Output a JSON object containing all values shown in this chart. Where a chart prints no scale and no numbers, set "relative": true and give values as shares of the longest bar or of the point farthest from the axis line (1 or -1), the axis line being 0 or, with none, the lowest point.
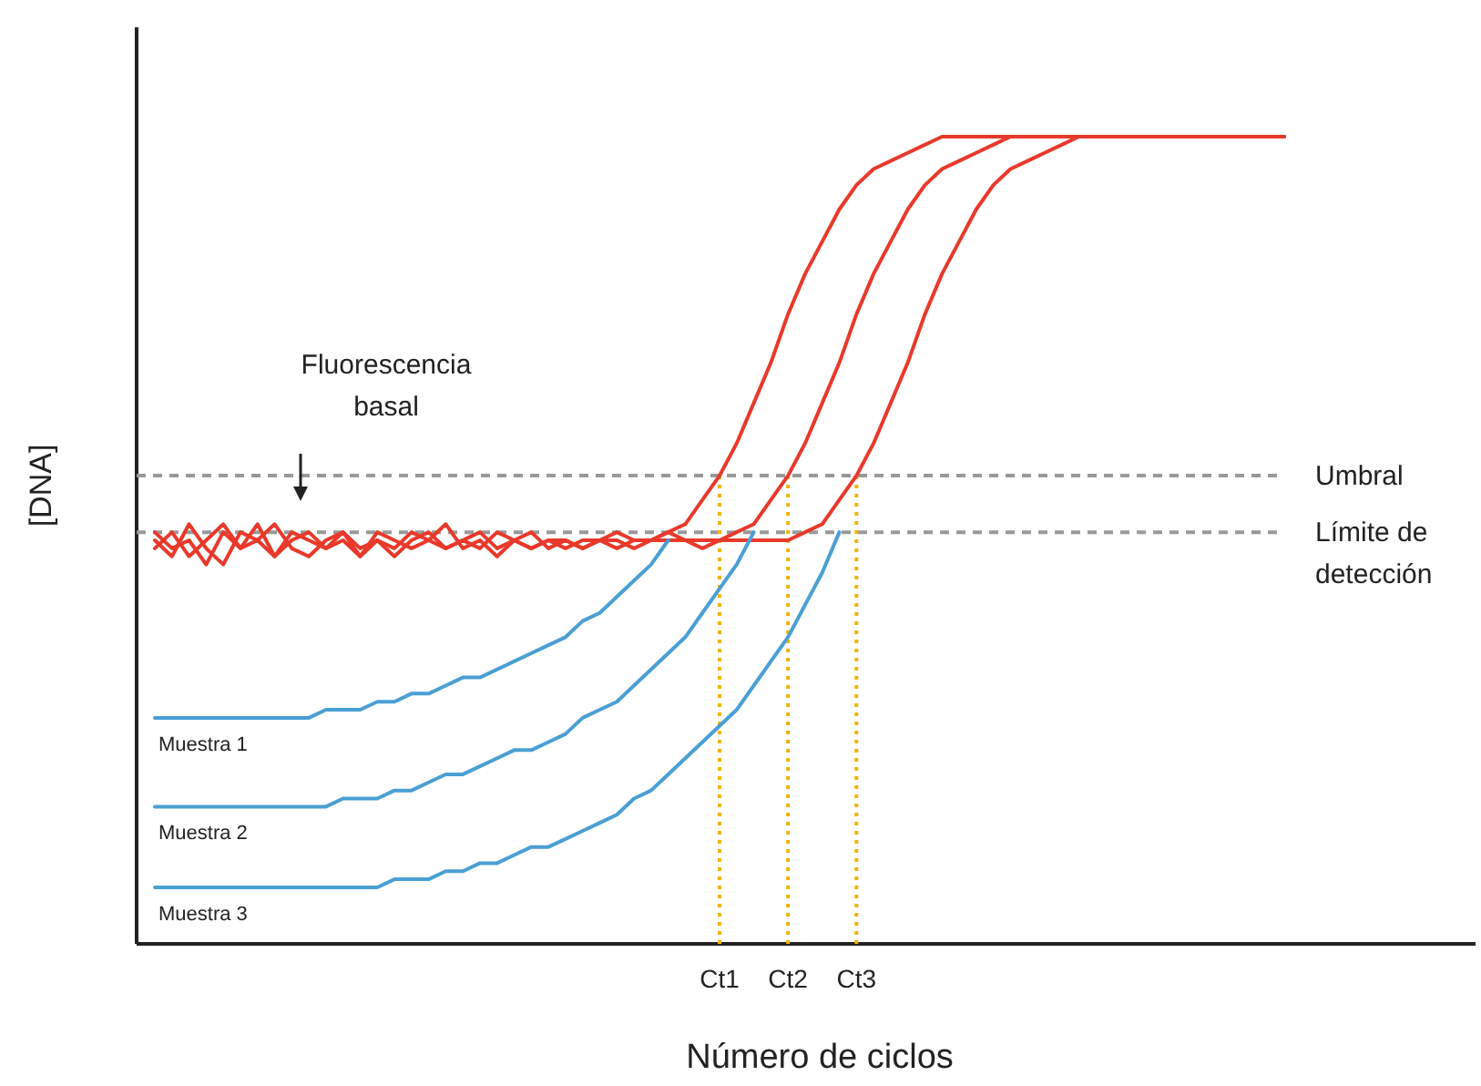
{
  "chart_data": {
    "type": "line",
    "relative": true,
    "xlabel": "Número de ciclos",
    "ylabel": "[DNA]",
    "categories": [
      null,
      null,
      null,
      null,
      null,
      null,
      null,
      null,
      null,
      null,
      null,
      null,
      null,
      null,
      null,
      null,
      null,
      null,
      null,
      null,
      null,
      null,
      null,
      null,
      null,
      null,
      null,
      null,
      null,
      null,
      null,
      null,
      null,
      "Ct1",
      null,
      null,
      null,
      "Ct2",
      null,
      null,
      null,
      "Ct3",
      null,
      null,
      null,
      null,
      null,
      null,
      null,
      null,
      null,
      null,
      null,
      null,
      null,
      null,
      null,
      null,
      null,
      null,
      null,
      null,
      null,
      null,
      null,
      null,
      null
    ],
    "series": [
      {
        "color": "#e8392b",
        "values": [
          0.49,
          0.51,
          0.48,
          0.5,
          0.52,
          0.49,
          0.5,
          0.48,
          0.51,
          0.5,
          0.49,
          0.51,
          0.48,
          0.5,
          0.49,
          0.51,
          0.5,
          0.49,
          0.5,
          0.51,
          0.49,
          0.5,
          0.49,
          0.5,
          0.49,
          0.5,
          0.5,
          0.49,
          0.5,
          0.5,
          0.51,
          0.52,
          0.55,
          0.58,
          0.62,
          0.67,
          0.72,
          0.78,
          0.83,
          0.87,
          0.91,
          0.94,
          0.96,
          0.97,
          0.98,
          0.99,
          1,
          1,
          1,
          1,
          1,
          1,
          1,
          1,
          1,
          1,
          1,
          1,
          1,
          1,
          1,
          1,
          1,
          1,
          1,
          1,
          1
        ]
      },
      {
        "color": "#e8392b",
        "values": [
          0.5,
          0.48,
          0.52,
          0.49,
          0.47,
          0.51,
          0.5,
          0.52,
          0.49,
          0.48,
          0.5,
          0.51,
          0.49,
          0.5,
          0.48,
          0.5,
          0.51,
          0.49,
          0.5,
          0.49,
          0.51,
          0.5,
          0.49,
          0.5,
          0.5,
          0.49,
          0.5,
          0.51,
          0.5,
          0.5,
          0.51,
          0.5,
          0.5,
          0.5,
          0.51,
          0.52,
          0.55,
          0.58,
          0.62,
          0.67,
          0.72,
          0.78,
          0.83,
          0.87,
          0.91,
          0.94,
          0.96,
          0.97,
          0.98,
          0.99,
          1,
          1,
          1,
          1,
          1,
          1,
          1,
          1,
          1,
          1,
          1,
          1,
          1,
          1,
          1,
          1,
          1
        ]
      },
      {
        "color": "#e8392b",
        "values": [
          0.51,
          0.49,
          0.5,
          0.47,
          0.51,
          0.49,
          0.52,
          0.48,
          0.5,
          0.51,
          0.49,
          0.5,
          0.48,
          0.51,
          0.5,
          0.49,
          0.5,
          0.52,
          0.49,
          0.5,
          0.48,
          0.5,
          0.51,
          0.49,
          0.5,
          0.49,
          0.5,
          0.5,
          0.49,
          0.5,
          0.5,
          0.5,
          0.49,
          0.5,
          0.5,
          0.5,
          0.5,
          0.5,
          0.51,
          0.52,
          0.55,
          0.58,
          0.62,
          0.67,
          0.72,
          0.78,
          0.83,
          0.87,
          0.91,
          0.94,
          0.96,
          0.97,
          0.98,
          0.99,
          1,
          1,
          1,
          1,
          1,
          1,
          1,
          1,
          1,
          1,
          1,
          1,
          1
        ]
      },
      {
        "name": "Muestra 1",
        "color": "#4a9fd4",
        "values": [
          0.28,
          0.28,
          0.28,
          0.28,
          0.28,
          0.28,
          0.28,
          0.28,
          0.28,
          0.28,
          0.29,
          0.29,
          0.29,
          0.3,
          0.3,
          0.31,
          0.31,
          0.32,
          0.33,
          0.33,
          0.34,
          0.35,
          0.36,
          0.37,
          0.38,
          0.4,
          0.41,
          0.43,
          0.45,
          0.47,
          0.5,
          null,
          null,
          null,
          null,
          null,
          null,
          null,
          null,
          null,
          null,
          null,
          null,
          null,
          null,
          null,
          null,
          null,
          null,
          null,
          null,
          null,
          null,
          null,
          null,
          null,
          null,
          null,
          null,
          null,
          null,
          null,
          null,
          null,
          null,
          null,
          null
        ]
      },
      {
        "name": "Muestra 2",
        "color": "#4a9fd4",
        "values": [
          0.17,
          0.17,
          0.17,
          0.17,
          0.17,
          0.17,
          0.17,
          0.17,
          0.17,
          0.17,
          0.17,
          0.18,
          0.18,
          0.18,
          0.19,
          0.19,
          0.2,
          0.21,
          0.21,
          0.22,
          0.23,
          0.24,
          0.24,
          0.25,
          0.26,
          0.28,
          0.29,
          0.3,
          0.32,
          0.34,
          0.36,
          0.38,
          0.41,
          0.44,
          0.47,
          0.51,
          null,
          null,
          null,
          null,
          null,
          null,
          null,
          null,
          null,
          null,
          null,
          null,
          null,
          null,
          null,
          null,
          null,
          null,
          null,
          null,
          null,
          null,
          null,
          null,
          null,
          null,
          null,
          null,
          null,
          null,
          null
        ]
      },
      {
        "name": "Muestra 3",
        "color": "#4a9fd4",
        "values": [
          0.07,
          0.07,
          0.07,
          0.07,
          0.07,
          0.07,
          0.07,
          0.07,
          0.07,
          0.07,
          0.07,
          0.07,
          0.07,
          0.07,
          0.08,
          0.08,
          0.08,
          0.09,
          0.09,
          0.1,
          0.1,
          0.11,
          0.12,
          0.12,
          0.13,
          0.14,
          0.15,
          0.16,
          0.18,
          0.19,
          0.21,
          0.23,
          0.25,
          0.27,
          0.29,
          0.32,
          0.35,
          0.38,
          0.42,
          0.46,
          0.51,
          null,
          null,
          null,
          null,
          null,
          null,
          null,
          null,
          null,
          null,
          null,
          null,
          null,
          null,
          null,
          null,
          null,
          null,
          null,
          null,
          null,
          null,
          null,
          null,
          null,
          null
        ]
      }
    ],
    "ref_lines": [
      {
        "axis": "y",
        "value": 0.58,
        "label": "Umbral",
        "color": "#999999",
        "line_style": "dashed"
      },
      {
        "axis": "y",
        "value": 0.51,
        "label": "Límite de detección",
        "color": "#999999",
        "line_style": "dashed"
      },
      {
        "axis": "x",
        "value": "Ct1",
        "color": "#f0b400",
        "line_style": "dotted"
      },
      {
        "axis": "x",
        "value": "Ct2",
        "color": "#f0b400",
        "line_style": "dotted"
      },
      {
        "axis": "x",
        "value": "Ct3",
        "color": "#f0b400",
        "line_style": "dotted"
      }
    ],
    "annotations": [
      "Fluorescencia basal"
    ]
  }
}
